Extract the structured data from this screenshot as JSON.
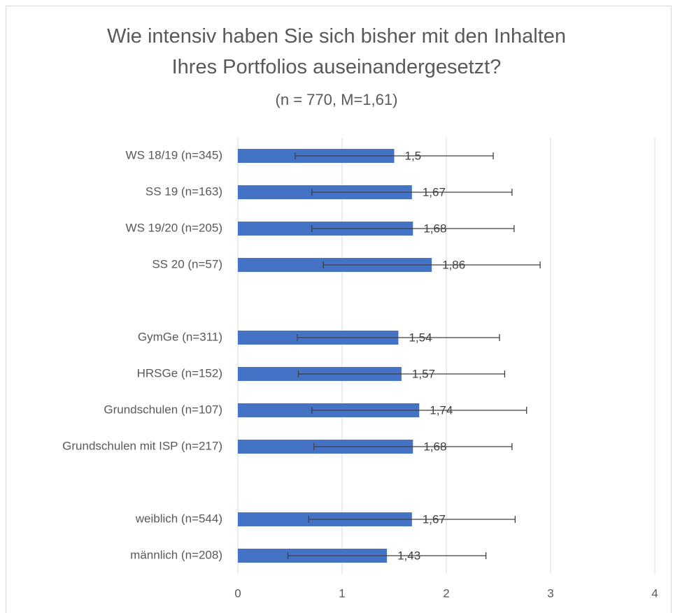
{
  "chart_data": {
    "type": "hbar",
    "title": "Wie intensiv haben Sie sich bisher mit den Inhalten Ihres Portfolios auseinandergesetzt?",
    "subtitle": "(n = 770, M=1,61)",
    "categories": [
      "WS 18/19 (n=345)",
      "SS 19 (n=163)",
      "WS 19/20 (n=205)",
      "SS 20 (n=57)",
      null,
      "GymGe (n=311)",
      "HRSGe (n=152)",
      "Grundschulen (n=107)",
      "Grundschulen mit ISP (n=217)",
      null,
      "weiblich (n=544)",
      "männlich (n=208)"
    ],
    "values": [
      1.5,
      1.67,
      1.68,
      1.86,
      null,
      1.54,
      1.57,
      1.74,
      1.68,
      null,
      1.67,
      1.43
    ],
    "value_labels": [
      "1,5",
      "1,67",
      "1,68",
      "1,86",
      null,
      "1,54",
      "1,57",
      "1,74",
      "1,68",
      null,
      "1,67",
      "1,43"
    ],
    "errors": [
      0.95,
      0.96,
      0.97,
      1.04,
      null,
      0.97,
      0.99,
      1.03,
      0.95,
      null,
      0.99,
      0.95
    ],
    "color": "#4472c4",
    "error_color": "#404040",
    "xlim": [
      0,
      4
    ],
    "xticks": [
      0,
      1,
      2,
      3,
      4
    ],
    "grid": true
  }
}
